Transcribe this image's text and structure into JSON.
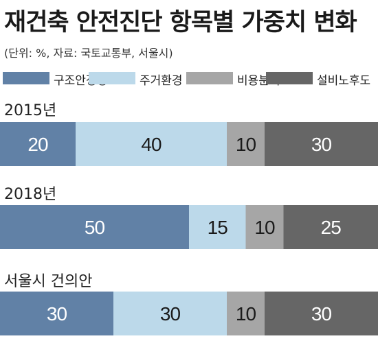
{
  "title": "재건축 안전진단 항목별 가중치 변화",
  "subtitle": "(단위: %, 자료: 국토교통부, 서울시)",
  "colors": {
    "구조안정성": "#6181a6",
    "주거환경": "#bcd9ea",
    "비용분석": "#a6a6a6",
    "설비노후도": "#666666"
  },
  "chart_data": {
    "type": "bar",
    "orientation": "horizontal",
    "stacked": true,
    "title": "재건축 안전진단 항목별 가중치 변화",
    "subtitle": "(단위: %, 자료: 국토교통부, 서울시)",
    "categories": [
      "2015년",
      "2018년",
      "서울시 건의안"
    ],
    "series": [
      {
        "name": "구조안정성",
        "values": [
          20,
          50,
          30
        ],
        "color": "#6181a6"
      },
      {
        "name": "주거환경",
        "values": [
          40,
          15,
          30
        ],
        "color": "#bcd9ea"
      },
      {
        "name": "비용분석",
        "values": [
          10,
          10,
          10
        ],
        "color": "#a6a6a6"
      },
      {
        "name": "설비노후도",
        "values": [
          30,
          25,
          30
        ],
        "color": "#666666"
      }
    ],
    "xlim": [
      0,
      100
    ],
    "legend": "top",
    "grid": false
  }
}
